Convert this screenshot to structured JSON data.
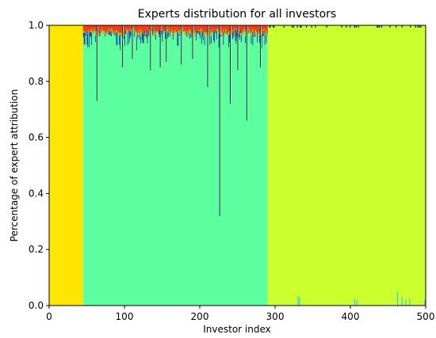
{
  "chart_data": {
    "type": "area",
    "title": "Experts distribution for all investors",
    "xlabel": "Investor index",
    "ylabel": "Percentage of expert attribution",
    "xlim": [
      0,
      500
    ],
    "ylim": [
      0.0,
      1.0
    ],
    "xticks": [
      "0",
      "100",
      "200",
      "300",
      "400",
      "500"
    ],
    "yticks": [
      "0.0",
      "0.2",
      "0.4",
      "0.6",
      "0.8",
      "1.0"
    ],
    "grid": false,
    "legend": "none",
    "series_colors": {
      "yellow": "#ffe600",
      "green": "#5cffa0",
      "lime": "#ccff2e",
      "blue": "#0a1fa8",
      "red": "#ee3b1a",
      "orange": "#ff8c00",
      "cyan": "#30d0e0"
    },
    "segments": [
      {
        "name": "yellow-block",
        "x_start": 0,
        "x_end": 45,
        "color": "#ffe600",
        "value": 1.0
      },
      {
        "name": "green-block",
        "x_start": 45,
        "x_end": 290,
        "color": "#5cffa0",
        "value": 0.97
      },
      {
        "name": "lime-block",
        "x_start": 290,
        "x_end": 500,
        "color": "#ccff2e",
        "value": 0.995
      }
    ],
    "notable_dips": [
      {
        "x": 63,
        "y": 0.73
      },
      {
        "x": 97,
        "y": 0.85
      },
      {
        "x": 110,
        "y": 0.88
      },
      {
        "x": 134,
        "y": 0.84
      },
      {
        "x": 147,
        "y": 0.85
      },
      {
        "x": 155,
        "y": 0.87
      },
      {
        "x": 175,
        "y": 0.86
      },
      {
        "x": 190,
        "y": 0.88
      },
      {
        "x": 210,
        "y": 0.78
      },
      {
        "x": 226,
        "y": 0.32
      },
      {
        "x": 240,
        "y": 0.72
      },
      {
        "x": 250,
        "y": 0.84
      },
      {
        "x": 262,
        "y": 0.66
      },
      {
        "x": 280,
        "y": 0.85
      }
    ]
  }
}
